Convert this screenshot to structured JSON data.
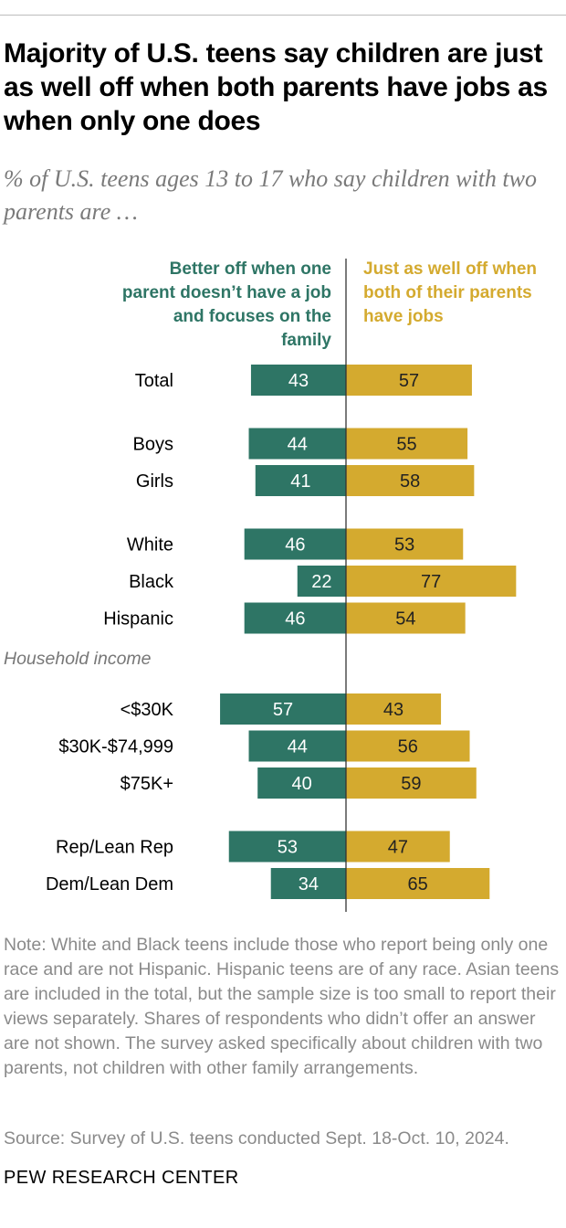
{
  "header": {
    "title": "Majority of U.S. teens say children are just as well off when both parents have jobs as when only one does",
    "subtitle": "% of U.S. teens ages 13 to 17 who say children with two parents are …"
  },
  "legend": {
    "left": "Better off when one parent doesn’t have a job and focuses on the family",
    "right": "Just as well off when both of their parents have jobs"
  },
  "colors": {
    "left": "#2e7565",
    "right": "#d4aa2f",
    "axis": "#333333"
  },
  "chart_data": {
    "type": "bar",
    "orientation": "diverging-horizontal",
    "series": [
      {
        "name": "Better off when one parent doesn’t have a job and focuses on the family",
        "side": "left"
      },
      {
        "name": "Just as well off when both of their parents have jobs",
        "side": "right"
      }
    ],
    "rows": [
      {
        "label": "Total",
        "left": 43,
        "right": 57
      },
      {
        "label": "Boys",
        "left": 44,
        "right": 55
      },
      {
        "label": "Girls",
        "left": 41,
        "right": 58
      },
      {
        "label": "White",
        "left": 46,
        "right": 53
      },
      {
        "label": "Black",
        "left": 22,
        "right": 77
      },
      {
        "label": "Hispanic",
        "left": 46,
        "right": 54
      },
      {
        "label": "<$30K",
        "left": 57,
        "right": 43
      },
      {
        "label": "$30K-$74,999",
        "left": 44,
        "right": 56
      },
      {
        "label": "$75K+",
        "left": 40,
        "right": 59
      },
      {
        "label": "Rep/Lean Rep",
        "left": 53,
        "right": 47
      },
      {
        "label": "Dem/Lean Dem",
        "left": 34,
        "right": 65
      }
    ],
    "groups": [
      {
        "heading": "",
        "rows": [
          0
        ]
      },
      {
        "heading": "",
        "rows": [
          1,
          2
        ]
      },
      {
        "heading": "",
        "rows": [
          3,
          4,
          5
        ]
      },
      {
        "heading": "Household income",
        "rows": [
          6,
          7,
          8
        ]
      },
      {
        "heading": "",
        "rows": [
          9,
          10
        ]
      }
    ]
  },
  "footer": {
    "note": "Note: White and Black teens include those who report being only one race and are not Hispanic. Hispanic teens are of any race. Asian teens are included in the total, but the sample size is too small to report their views separately. Shares of respondents who didn’t offer an answer are not shown. The survey asked specifically about children with two parents, not children with other family arrangements.",
    "source": "Source: Survey of U.S. teens conducted Sept. 18-Oct. 10, 2024.",
    "brand": "PEW RESEARCH CENTER"
  }
}
